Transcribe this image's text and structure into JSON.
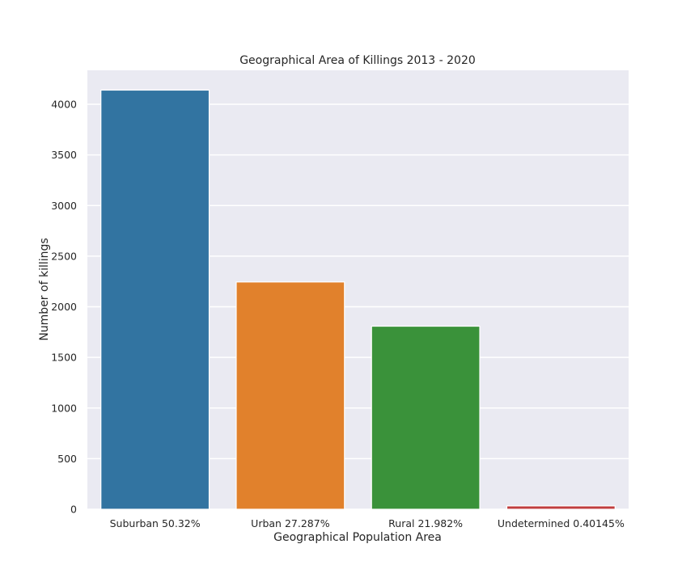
{
  "chart_data": {
    "type": "bar",
    "title": "Geographical Area of Killings 2013 - 2020",
    "xlabel": "Geographical Population Area",
    "ylabel": "Number of killings",
    "categories": [
      "Suburban 50.32%",
      "Urban 27.287%",
      "Rural 21.982%",
      "Undetermined 0.40145%"
    ],
    "values": [
      4140,
      2245,
      1808,
      33
    ],
    "colors": [
      "#3274a1",
      "#e1812c",
      "#3a923a",
      "#c03d3e"
    ],
    "ylim": [
      0,
      4300
    ],
    "yticks": [
      0,
      500,
      1000,
      1500,
      2000,
      2500,
      3000,
      3500,
      4000
    ],
    "grid": true,
    "background": "#eaeaf2",
    "legend": "none"
  }
}
